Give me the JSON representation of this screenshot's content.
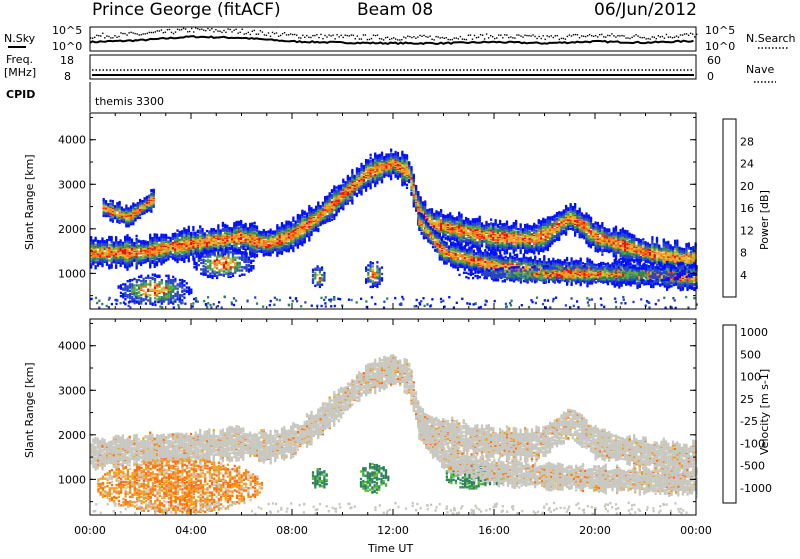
{
  "header": {
    "station": "Prince George (fitACF)",
    "beam": "Beam 08",
    "date": "06/Jun/2012"
  },
  "top_panels": {
    "nsky_label": "N.Sky",
    "nsky_ticks": [
      "10^5",
      "10^0"
    ],
    "nsearch_label": "N.Search",
    "nsearch_ticks": [
      "10^5",
      "10^0"
    ],
    "freq_label_1": "Freq.",
    "freq_label_2": "[MHz]",
    "freq_ticks": [
      "18",
      "8"
    ],
    "nave_label": "Nave",
    "nave_ticks": [
      "60",
      "0"
    ],
    "cpid_label": "CPID",
    "cpid_value": "themis 3300"
  },
  "chart_data": [
    {
      "type": "heatmap",
      "name": "power",
      "ylabel": "Slant Range [km]",
      "y_ticks": [
        1000,
        2000,
        3000,
        4000
      ],
      "ylim": [
        200,
        4600
      ],
      "xlim": [
        0,
        24
      ],
      "colorbar": {
        "label": "Power [dB]",
        "ticks": [
          "4",
          "8",
          "12",
          "16",
          "20",
          "24",
          "28"
        ],
        "colors": [
          "#0010ff",
          "#2a44c8",
          "#2d8060",
          "#58a848",
          "#c8c83c",
          "#f0a020",
          "#ff6a10",
          "#e81010"
        ]
      },
      "features": [
        {
          "type": "band",
          "points": [
            [
              0,
              1500
            ],
            [
              2,
              1500
            ],
            [
              4,
              1700
            ],
            [
              6,
              1850
            ],
            [
              7,
              1700
            ],
            [
              8,
              1900
            ],
            [
              9,
              2300
            ],
            [
              10,
              2800
            ],
            [
              11,
              3300
            ],
            [
              12,
              3500
            ],
            [
              12.6,
              3300
            ],
            [
              13,
              2400
            ],
            [
              13.5,
              2150
            ],
            [
              15,
              1950
            ],
            [
              16,
              1850
            ],
            [
              17.5,
              1800
            ],
            [
              18,
              1900
            ],
            [
              19,
              2300
            ],
            [
              19.5,
              2100
            ],
            [
              20,
              1850
            ],
            [
              22,
              1500
            ],
            [
              23.5,
              1350
            ],
            [
              24,
              1400
            ]
          ],
          "width": 300
        },
        {
          "type": "band",
          "points": [
            [
              0.5,
              2500
            ],
            [
              1.5,
              2300
            ],
            [
              2.5,
              2700
            ]
          ],
          "width": 200
        },
        {
          "type": "band",
          "points": [
            [
              13,
              2200
            ],
            [
              14,
              1500
            ],
            [
              16,
              1200
            ],
            [
              18,
              1100
            ],
            [
              20,
              1050
            ],
            [
              22,
              1000
            ],
            [
              24,
              950
            ]
          ],
          "width": 250
        },
        {
          "type": "blob",
          "x": [
            1.0,
            4.0
          ],
          "y": [
            300,
            1000
          ]
        },
        {
          "type": "blob",
          "x": [
            4.0,
            6.5
          ],
          "y": [
            900,
            1600
          ]
        },
        {
          "type": "blob",
          "x": [
            8.7,
            9.3
          ],
          "y": [
            700,
            1200
          ]
        },
        {
          "type": "blob",
          "x": [
            10.8,
            11.6
          ],
          "y": [
            700,
            1300
          ]
        },
        {
          "type": "blob",
          "x": [
            14.5,
            24
          ],
          "y": [
            800,
            1200
          ]
        }
      ]
    },
    {
      "type": "heatmap",
      "name": "velocity",
      "ylabel": "Slant Range [km]",
      "xlabel": "Time UT",
      "x_ticks": [
        "00:00",
        "04:00",
        "08:00",
        "12:00",
        "16:00",
        "20:00",
        "00:00"
      ],
      "y_ticks": [
        1000,
        2000,
        3000,
        4000
      ],
      "ylim": [
        200,
        4600
      ],
      "xlim": [
        0,
        24
      ],
      "colorbar": {
        "label": "Velocity [m s-1]",
        "ticks": [
          "1000",
          "500",
          "100",
          "25",
          "-25",
          "-100",
          "-500",
          "-1000"
        ],
        "colors": [
          "#2040c8",
          "#2d6aa8",
          "#2d8060",
          "#58c030",
          "#c8c8c0",
          "#f0a020",
          "#ff7010",
          "#ff2020"
        ]
      },
      "features": [
        {
          "type": "band",
          "points": [
            [
              0,
              1600
            ],
            [
              2,
              1700
            ],
            [
              4,
              1750
            ],
            [
              6,
              1850
            ],
            [
              7,
              1750
            ],
            [
              8,
              1900
            ],
            [
              9,
              2300
            ],
            [
              10,
              2800
            ],
            [
              11,
              3300
            ],
            [
              12,
              3500
            ],
            [
              12.6,
              3300
            ],
            [
              13,
              2400
            ],
            [
              13.5,
              2150
            ],
            [
              15,
              1950
            ],
            [
              16,
              1850
            ],
            [
              17.5,
              1800
            ],
            [
              18,
              1900
            ],
            [
              19,
              2300
            ],
            [
              19.5,
              2100
            ],
            [
              20,
              1850
            ],
            [
              22,
              1600
            ],
            [
              23.5,
              1500
            ],
            [
              24,
              1550
            ]
          ],
          "width": 300,
          "color": "grey"
        },
        {
          "type": "blob",
          "x": [
            0.2,
            6.8
          ],
          "y": [
            250,
            1500
          ],
          "color": "orange"
        },
        {
          "type": "blob",
          "x": [
            8.7,
            9.4
          ],
          "y": [
            800,
            1300
          ],
          "color": "green"
        },
        {
          "type": "blob",
          "x": [
            10.6,
            11.8
          ],
          "y": [
            700,
            1400
          ],
          "color": "green"
        },
        {
          "type": "blob",
          "x": [
            14,
            16.5
          ],
          "y": [
            800,
            1400
          ],
          "color": "green"
        },
        {
          "type": "band",
          "points": [
            [
              13,
              2200
            ],
            [
              14,
              1500
            ],
            [
              16,
              1200
            ],
            [
              18,
              1100
            ],
            [
              20,
              1050
            ],
            [
              22,
              1000
            ],
            [
              24,
              950
            ]
          ],
          "width": 250,
          "color": "grey"
        }
      ]
    }
  ],
  "series_top": {
    "nsky_profile": [
      [
        0,
        0.7
      ],
      [
        2,
        1.0
      ],
      [
        4,
        1.6
      ],
      [
        6,
        1.4
      ],
      [
        8,
        0.8
      ],
      [
        10,
        0.6
      ],
      [
        12,
        0.5
      ],
      [
        14,
        0.5
      ],
      [
        16,
        0.7
      ],
      [
        18,
        0.5
      ],
      [
        20,
        0.8
      ],
      [
        22,
        0.6
      ],
      [
        24,
        0.9
      ]
    ]
  }
}
